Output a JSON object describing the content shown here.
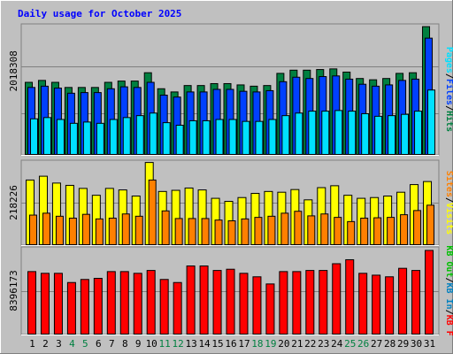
{
  "chart_data": {
    "type": "bar",
    "title": "Daily usage for October 2025",
    "colors": {
      "background": "#c0c0c0",
      "title": "#0000ff",
      "hits": "#008040",
      "files": "#0040ff",
      "pages": "#00e0ff",
      "visits": "#ffff00",
      "sites": "#ff8000",
      "kbin": "#0080c0",
      "kbout": "#00c000",
      "kbf": "#ff0000",
      "weekend_day": "#008040",
      "weekday": "#000000"
    },
    "days": [
      "1",
      "2",
      "3",
      "4",
      "5",
      "6",
      "7",
      "8",
      "9",
      "10",
      "11",
      "12",
      "13",
      "14",
      "15",
      "16",
      "17",
      "18",
      "19",
      "20",
      "21",
      "22",
      "23",
      "24",
      "25",
      "26",
      "27",
      "28",
      "29",
      "30",
      "31"
    ],
    "weekend_days": [
      4,
      5,
      11,
      12,
      18,
      19,
      25,
      26
    ],
    "panels": [
      {
        "name": "requests",
        "max_label": "2018308",
        "ymax": 2018308,
        "legend": [
          {
            "label": "Hits",
            "color": "#008040"
          },
          {
            "label": "Files",
            "color": "#0040ff"
          },
          {
            "label": "Pages",
            "color": "#00e0ff"
          }
        ],
        "series": [
          {
            "name": "Hits",
            "values": [
              1140000,
              1170000,
              1140000,
              1060000,
              1060000,
              1060000,
              1140000,
              1160000,
              1160000,
              1290000,
              1040000,
              990000,
              1090000,
              1090000,
              1120000,
              1120000,
              1100000,
              1080000,
              1090000,
              1280000,
              1330000,
              1330000,
              1340000,
              1350000,
              1300000,
              1200000,
              1180000,
              1200000,
              1280000,
              1290000,
              2010000
            ]
          },
          {
            "name": "Files",
            "values": [
              1060000,
              1080000,
              1050000,
              970000,
              980000,
              980000,
              1040000,
              1070000,
              1060000,
              1140000,
              940000,
              910000,
              990000,
              990000,
              1030000,
              1030000,
              1000000,
              990000,
              1010000,
              1150000,
              1220000,
              1200000,
              1230000,
              1240000,
              1190000,
              1110000,
              1080000,
              1100000,
              1170000,
              1190000,
              1830000
            ]
          },
          {
            "name": "Pages",
            "values": [
              570000,
              590000,
              560000,
              500000,
              520000,
              500000,
              560000,
              590000,
              620000,
              660000,
              510000,
              470000,
              540000,
              540000,
              560000,
              560000,
              530000,
              530000,
              560000,
              620000,
              660000,
              690000,
              690000,
              700000,
              690000,
              650000,
              610000,
              620000,
              640000,
              690000,
              1020000
            ]
          }
        ]
      },
      {
        "name": "visitors",
        "max_label": "218226",
        "ymax": 218226,
        "legend": [
          {
            "label": "Visits",
            "color": "#ffff00"
          },
          {
            "label": "Sites",
            "color": "#ff8000"
          }
        ],
        "series": [
          {
            "name": "Visits",
            "values": [
              172000,
              182000,
              164000,
              158000,
              150000,
              132000,
              150000,
              146000,
              130000,
              218000,
              142000,
              145000,
              151000,
              146000,
              124000,
              116000,
              126000,
              137000,
              142000,
              140000,
              147000,
              120000,
              152000,
              157000,
              132000,
              124000,
              126000,
              130000,
              140000,
              160000,
              168000
            ]
          },
          {
            "name": "Sites",
            "values": [
              80000,
              85000,
              77000,
              72000,
              82000,
              70000,
              72000,
              83000,
              77000,
              172000,
              91000,
              71000,
              71000,
              71000,
              67000,
              65000,
              70000,
              74000,
              77000,
              85000,
              90000,
              78000,
              83000,
              74000,
              63000,
              72000,
              73000,
              74000,
              81000,
              92000,
              106000
            ]
          }
        ]
      },
      {
        "name": "volume",
        "max_label": "8396173",
        "ymax": 8396173,
        "legend": [
          {
            "label": "KB F",
            "color": "#ff0000"
          },
          {
            "label": "KB In",
            "color": "#0080c0"
          },
          {
            "label": "KB Out",
            "color": "#00c000"
          }
        ],
        "series": [
          {
            "name": "KB F",
            "values": [
              6200000,
              6030000,
              6030000,
              5130000,
              5430000,
              5540000,
              6200000,
              6200000,
              6030000,
              6310000,
              5430000,
              5130000,
              6750000,
              6750000,
              6310000,
              6430000,
              6030000,
              5690000,
              4990000,
              6200000,
              6200000,
              6310000,
              6310000,
              6970000,
              7360000,
              6030000,
              5850000,
              5690000,
              6520000,
              6310000,
              8270000
            ]
          }
        ]
      }
    ]
  }
}
